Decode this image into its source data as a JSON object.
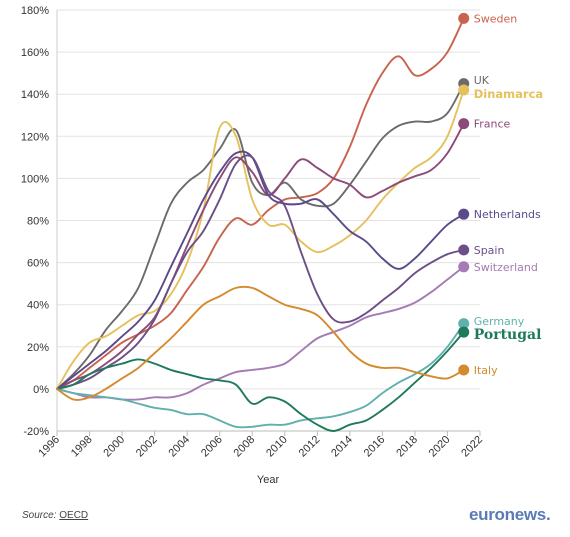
{
  "chart_data": {
    "type": "line",
    "title": "",
    "xlabel": "Year",
    "ylabel": "",
    "xlim": [
      1996,
      2022
    ],
    "ylim": [
      -20,
      180
    ],
    "grid": true,
    "x_ticks": [
      1996,
      1998,
      2000,
      2002,
      2004,
      2006,
      2008,
      2010,
      2012,
      2014,
      2016,
      2018,
      2020,
      2022
    ],
    "y_ticks": [
      -20,
      0,
      20,
      40,
      60,
      80,
      100,
      120,
      140,
      160,
      180
    ],
    "y_tick_labels": [
      "-20%",
      "0%",
      "20%",
      "40%",
      "60%",
      "80%",
      "100%",
      "120%",
      "140%",
      "160%",
      "180%"
    ],
    "x": [
      1996,
      1997,
      1998,
      1999,
      2000,
      2001,
      2002,
      2003,
      2004,
      2005,
      2006,
      2007,
      2008,
      2009,
      2010,
      2011,
      2012,
      2013,
      2014,
      2015,
      2016,
      2017,
      2018,
      2019,
      2020,
      2021
    ],
    "series": [
      {
        "name": "Sweden",
        "color": "#c8634e",
        "label_bold": false,
        "values": [
          0,
          4,
          10,
          16,
          22,
          26,
          30,
          36,
          47,
          58,
          72,
          81,
          78,
          85,
          90,
          91,
          93,
          100,
          115,
          135,
          150,
          158,
          149,
          152,
          160,
          176
        ]
      },
      {
        "name": "UK",
        "color": "#6b6b6b",
        "label_bold": false,
        "values": [
          0,
          7,
          16,
          28,
          37,
          48,
          68,
          88,
          98,
          104,
          114,
          123,
          98,
          92,
          98,
          90,
          87,
          88,
          97,
          108,
          119,
          125,
          127,
          127,
          131,
          145
        ]
      },
      {
        "name": "Dinamarca",
        "color": "#e5c15b",
        "label_bold": true,
        "values": [
          0,
          13,
          22,
          25,
          30,
          35,
          37,
          45,
          60,
          85,
          124,
          120,
          90,
          78,
          78,
          70,
          65,
          68,
          73,
          80,
          90,
          98,
          105,
          110,
          120,
          142
        ]
      },
      {
        "name": "France",
        "color": "#8c4a79",
        "label_bold": false,
        "values": [
          0,
          4,
          7,
          12,
          18,
          26,
          34,
          50,
          68,
          85,
          100,
          110,
          103,
          92,
          100,
          109,
          105,
          100,
          97,
          91,
          94,
          98,
          101,
          104,
          112,
          126
        ]
      },
      {
        "name": "Netherlands",
        "color": "#5b4a8a",
        "label_bold": false,
        "values": [
          0,
          6,
          12,
          18,
          25,
          32,
          42,
          58,
          74,
          90,
          103,
          112,
          110,
          92,
          88,
          88,
          90,
          83,
          75,
          70,
          62,
          57,
          62,
          70,
          78,
          83
        ]
      },
      {
        "name": "Spain",
        "color": "#6b4f86",
        "label_bold": false,
        "values": [
          0,
          2,
          5,
          10,
          15,
          22,
          33,
          50,
          65,
          75,
          90,
          107,
          110,
          94,
          87,
          65,
          45,
          33,
          32,
          36,
          42,
          48,
          55,
          60,
          64,
          66
        ]
      },
      {
        "name": "Switzerland",
        "color": "#a47bb2",
        "label_bold": false,
        "values": [
          0,
          -2,
          -4,
          -4,
          -5,
          -5,
          -4,
          -4,
          -2,
          2,
          5,
          8,
          9,
          10,
          12,
          18,
          24,
          27,
          30,
          34,
          36,
          38,
          41,
          46,
          52,
          58
        ]
      },
      {
        "name": "Germany",
        "color": "#5fb1ad",
        "label_bold": false,
        "values": [
          0,
          -2,
          -3,
          -4,
          -5,
          -7,
          -9,
          -10,
          -12,
          -12,
          -15,
          -18,
          -18,
          -17,
          -17,
          -15,
          -14,
          -13,
          -11,
          -8,
          -2,
          3,
          7,
          12,
          20,
          31
        ]
      },
      {
        "name": "Portugal",
        "color": "#1f7a5c",
        "label_bold": true,
        "label_big": true,
        "values": [
          0,
          2,
          7,
          10,
          12,
          14,
          12,
          9,
          7,
          5,
          4,
          2,
          -7,
          -4,
          -6,
          -12,
          -17,
          -20,
          -17,
          -15,
          -10,
          -4,
          3,
          10,
          18,
          27
        ]
      },
      {
        "name": "Italy",
        "color": "#d48a2e",
        "label_bold": false,
        "values": [
          0,
          -5,
          -4,
          0,
          5,
          10,
          17,
          24,
          32,
          40,
          44,
          48,
          48,
          44,
          40,
          38,
          35,
          27,
          18,
          12,
          10,
          10,
          8,
          6,
          5,
          9
        ]
      }
    ]
  },
  "source": {
    "prefix": "Source: ",
    "link": "OECD"
  },
  "brand": {
    "name": "euronews",
    "dot": "."
  }
}
